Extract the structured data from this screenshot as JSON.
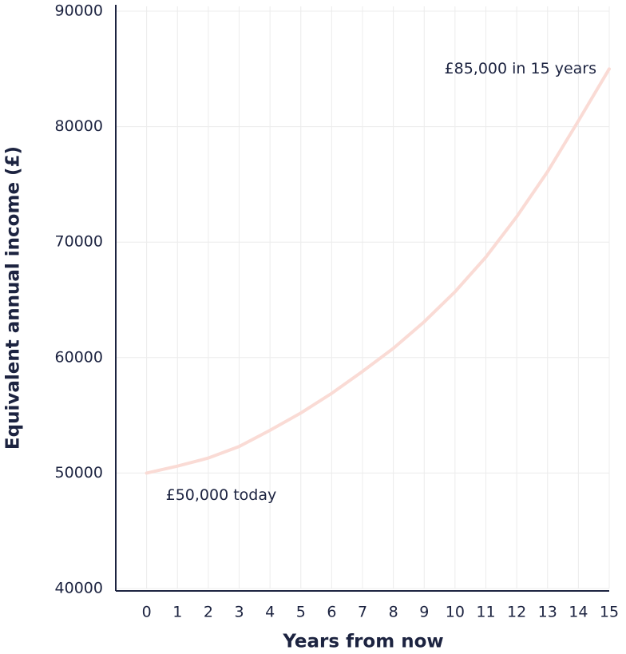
{
  "chart_data": {
    "type": "line",
    "x_label": "Years from now",
    "y_label": "Equivalent annual income (£)",
    "x": [
      0,
      1,
      2,
      3,
      4,
      5,
      6,
      7,
      8,
      9,
      10,
      11,
      12,
      13,
      14,
      15
    ],
    "values": [
      50000,
      50600,
      51300,
      52300,
      53700,
      55200,
      56900,
      58800,
      60800,
      63100,
      65700,
      68700,
      72200,
      76100,
      80500,
      85000
    ],
    "color": "#fadbd5",
    "xlim": [
      -1,
      15
    ],
    "xticks": [
      0,
      1,
      2,
      3,
      4,
      5,
      6,
      7,
      8,
      9,
      10,
      11,
      12,
      13,
      14,
      15
    ],
    "ylim": [
      40000,
      90000
    ],
    "yticks": [
      40000,
      50000,
      60000,
      70000,
      80000,
      90000
    ],
    "grid": true,
    "annotations": [
      "£85,000 in 15 years",
      "£50,000 today"
    ]
  }
}
